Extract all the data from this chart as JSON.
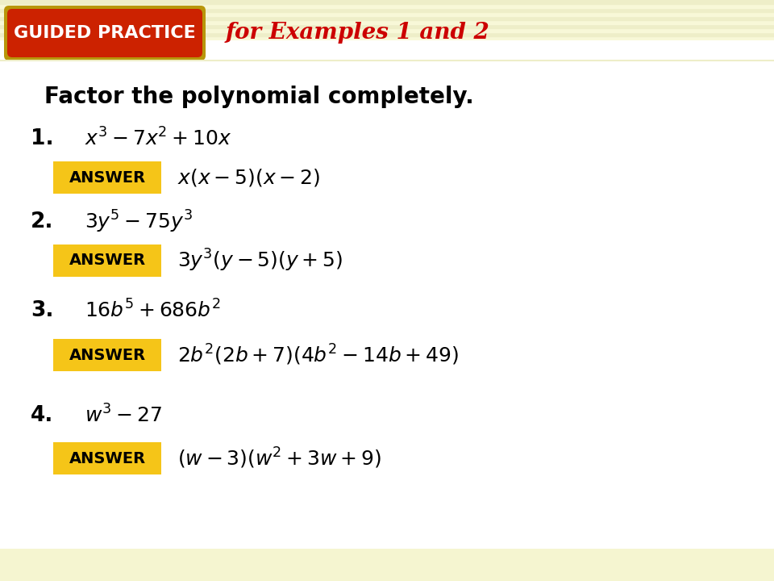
{
  "bg_color": "#f5f5d0",
  "content_bg": "#ffffff",
  "guided_practice_bg": "#cc2200",
  "guided_practice_border": "#b8960a",
  "guided_practice_text": "GUIDED PRACTICE",
  "header_right_text": "for Examples 1 and 2",
  "header_text_color": "#cc0000",
  "title": "Factor the polynomial completely.",
  "answer_box_color": "#f5c518",
  "answer_text": "ANSWER",
  "stripe_light": "#f8f8d8",
  "stripe_dark": "#eeeec8",
  "problems": [
    {
      "num": "1.",
      "problem": "$x^3 - 7x^2 + 10x$",
      "answer": "$x( x - 5 )( x - 2 )$"
    },
    {
      "num": "2.",
      "problem": "$3y^5 - 75y^3$",
      "answer": "$3y^3(y  - 5)(y + 5 )$"
    },
    {
      "num": "3.",
      "problem": "$16b^5 + 686b^2$",
      "answer": "$2b^2(2b + 7)(4b^2 - 14b + 49)$"
    },
    {
      "num": "4.",
      "problem": "$w^3 - 27$",
      "answer": "$(w - 3)(w^2 + 3w + 9)$"
    }
  ]
}
